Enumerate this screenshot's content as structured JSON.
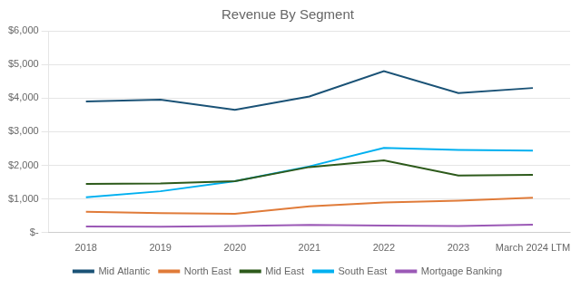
{
  "chart_data": {
    "type": "line",
    "title": "Revenue By Segment",
    "categories": [
      "2018",
      "2019",
      "2020",
      "2021",
      "2022",
      "2023",
      "March 2024 LTM"
    ],
    "series": [
      {
        "name": "Mid Atlantic",
        "color": "#1a5276",
        "values": [
          3900,
          3950,
          3650,
          4050,
          4800,
          4150,
          4300
        ]
      },
      {
        "name": "North East",
        "color": "#e07b39",
        "values": [
          620,
          580,
          560,
          780,
          900,
          950,
          1040
        ]
      },
      {
        "name": "Mid East",
        "color": "#2d5a1b",
        "values": [
          1450,
          1460,
          1530,
          1950,
          2150,
          1700,
          1720
        ]
      },
      {
        "name": "South East",
        "color": "#00b0f0",
        "values": [
          1050,
          1230,
          1530,
          1970,
          2520,
          2460,
          2440
        ]
      },
      {
        "name": "Mortgage Banking",
        "color": "#9b59b6",
        "values": [
          185,
          175,
          195,
          230,
          210,
          195,
          235
        ]
      }
    ],
    "ylim": [
      0,
      6000
    ],
    "yticks": [
      {
        "value": 0,
        "label": "$-"
      },
      {
        "value": 1000,
        "label": "$1,000"
      },
      {
        "value": 2000,
        "label": "$2,000"
      },
      {
        "value": 3000,
        "label": "$3,000"
      },
      {
        "value": 4000,
        "label": "$4,000"
      },
      {
        "value": 5000,
        "label": "$5,000"
      },
      {
        "value": 6000,
        "label": "$6,000"
      }
    ],
    "grid": true,
    "legend": "bottom"
  }
}
